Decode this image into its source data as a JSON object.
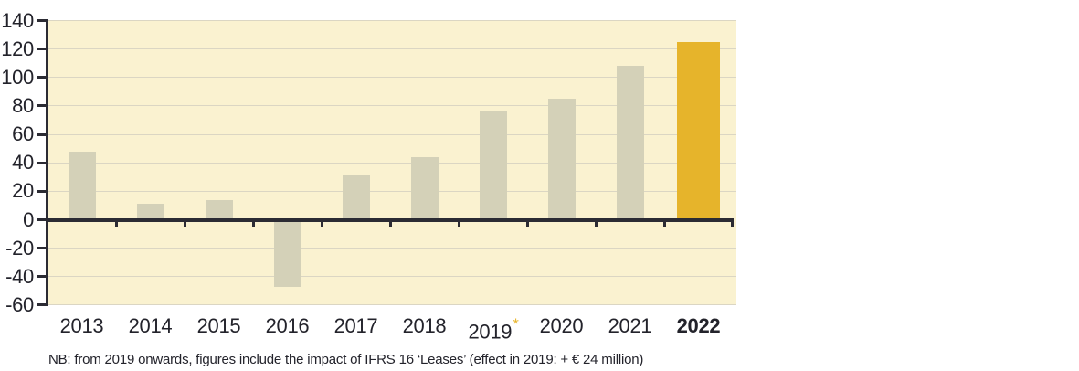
{
  "chart_data": {
    "type": "bar",
    "title": "",
    "categories": [
      "2013",
      "2014",
      "2015",
      "2016",
      "2017",
      "2018",
      "2019",
      "2020",
      "2021",
      "2022"
    ],
    "values": [
      48,
      11,
      14,
      -47,
      31,
      44,
      77,
      85,
      108,
      125
    ],
    "highlight_category": "2022",
    "asterisk_category": "2019",
    "asterisk_symbol": "*",
    "xlabel": "",
    "ylabel": "",
    "ylim": [
      -60,
      140
    ],
    "ytick_step": 20,
    "ytick_labels": [
      "140",
      "120",
      "100",
      "80",
      "60",
      "40",
      "20",
      "0",
      "-20",
      "-40",
      "-60"
    ],
    "grid": true,
    "legend": "none",
    "note": "NB: from 2019 onwards, figures include the impact of IFRS 16 ‘Leases’ (effect in 2019: + € 24 million)",
    "colors": {
      "plot_bg": "#faf2d0",
      "bar": "#d4d1b8",
      "bar_highlight": "#e6b42b",
      "gridline": "#dbd6c3",
      "axis": "#2b2b33",
      "text": "#23232b",
      "asterisk": "#e8b428"
    }
  }
}
